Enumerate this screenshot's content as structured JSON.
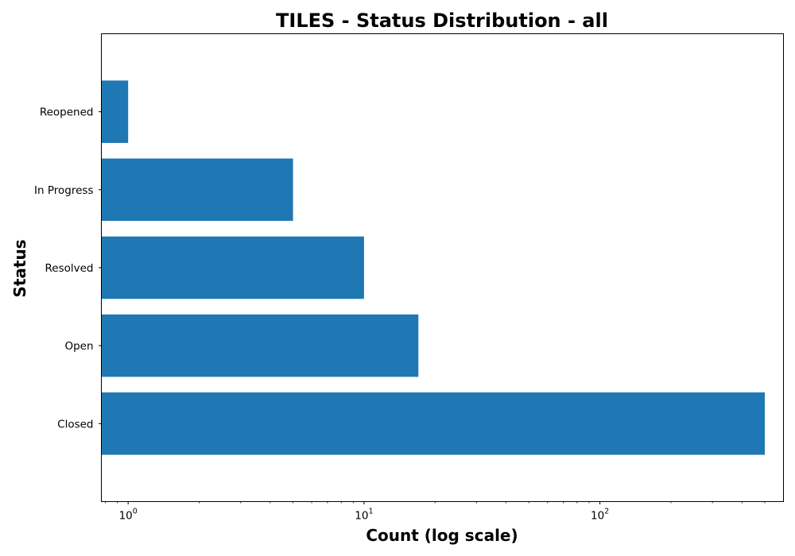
{
  "chart_data": {
    "type": "bar",
    "orientation": "horizontal",
    "title": "TILES - Status Distribution - all",
    "xlabel": "Count (log scale)",
    "ylabel": "Status",
    "xscale": "log",
    "xlim": [
      0.77,
      600
    ],
    "categories": [
      "Closed",
      "Open",
      "Resolved",
      "In Progress",
      "Reopened"
    ],
    "values": [
      500,
      17,
      10,
      5,
      1
    ],
    "x_major_ticks": [
      1,
      10,
      100
    ],
    "x_major_tick_labels": [
      {
        "base": "10",
        "exp": "0"
      },
      {
        "base": "10",
        "exp": "1"
      },
      {
        "base": "10",
        "exp": "2"
      }
    ],
    "bar_color": "#1f77b4",
    "grid": false,
    "legend": "none"
  }
}
